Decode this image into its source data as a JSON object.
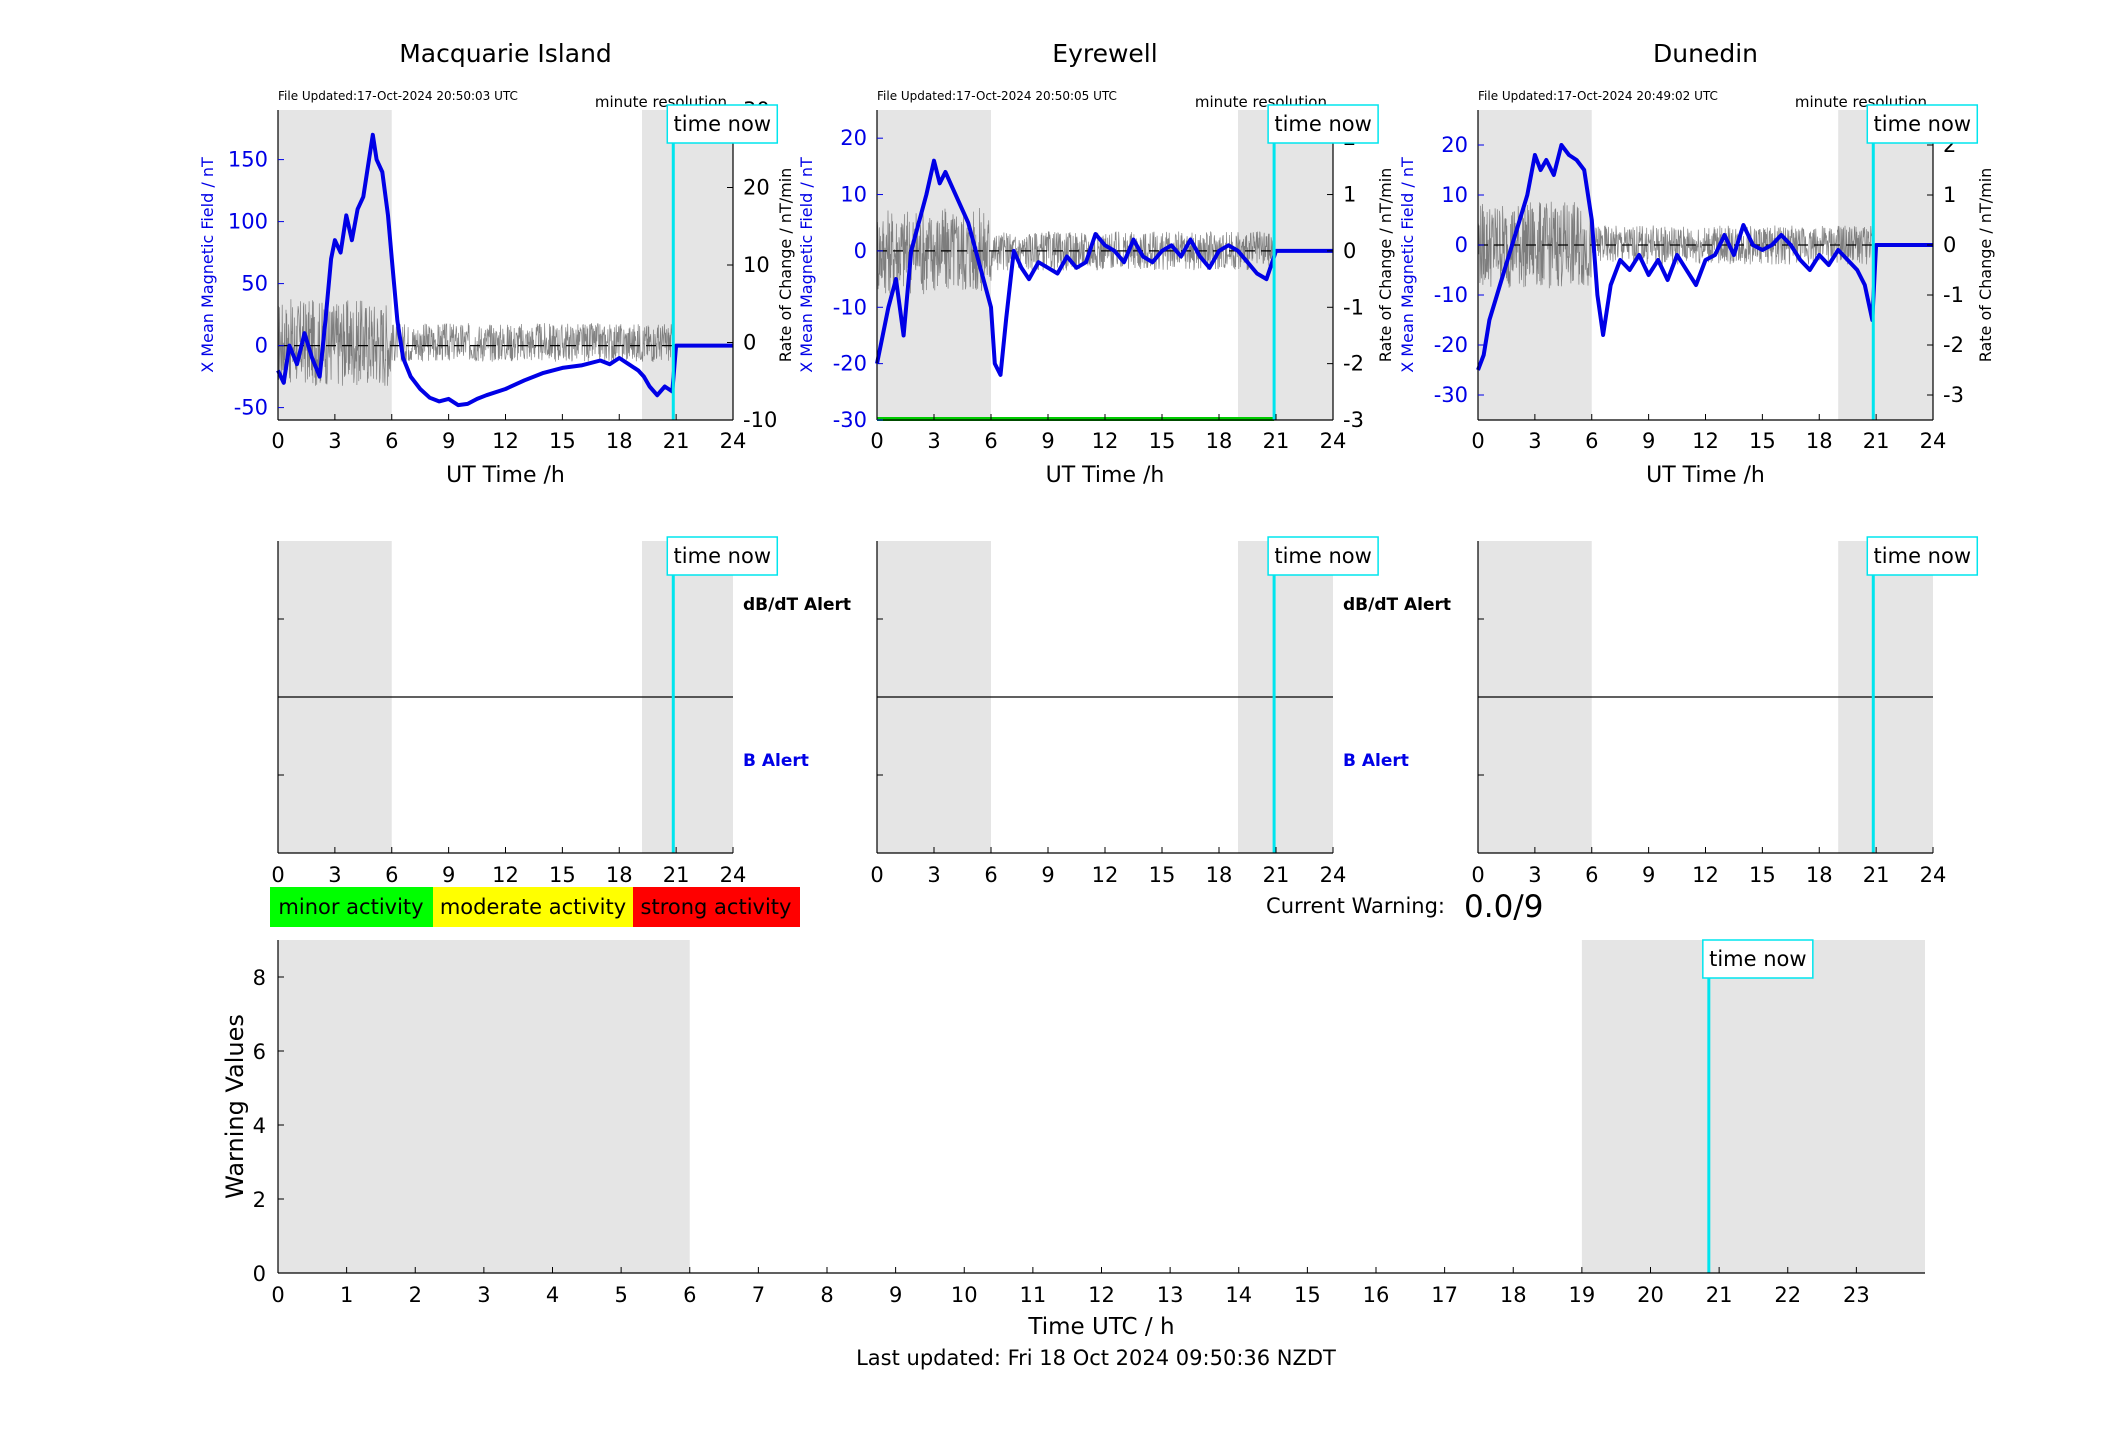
{
  "figure": {
    "footer": "Last updated: Fri 18 Oct 2024 09:50:36 NZDT",
    "current_warning_label": "Current Warning:",
    "current_warning_value": "0.0/9",
    "time_now_label": "time now",
    "minute_resolution_label": "minute resolution",
    "dbdt_alert_label": "dB/dT Alert",
    "b_alert_label": "B Alert",
    "colors": {
      "field_line": "#0000e6",
      "rate_line": "#5a5a5a",
      "time_now": "#00e5ee",
      "shade": "#e5e5e5",
      "green_baseline": "#00cc00",
      "minor": "#00ff00",
      "moderate": "#ffff00",
      "strong": "#ff0000"
    },
    "activity_legend": [
      {
        "label": "minor activity",
        "color": "#00ff00"
      },
      {
        "label": "moderate activity",
        "color": "#ffff00"
      },
      {
        "label": "strong activity",
        "color": "#ff0000"
      }
    ]
  },
  "chart_data": [
    {
      "type": "line",
      "title": "Macquarie Island",
      "file_updated": "File Updated:17-Oct-2024 20:50:03 UTC",
      "xlabel": "UT Time /h",
      "ylabel_left": "X Mean Magnetic Field / nT",
      "ylabel_right": "Rate of Change / nT/min",
      "xlim": [
        0,
        24
      ],
      "xticks": [
        0,
        3,
        6,
        9,
        12,
        15,
        18,
        21,
        24
      ],
      "ylim_left": [
        -60,
        190
      ],
      "yticks_left": [
        -50,
        0,
        50,
        100,
        150
      ],
      "ylim_right": [
        -10,
        30
      ],
      "yticks_right": [
        -10,
        0,
        10,
        20,
        30
      ],
      "shaded_x": [
        [
          0,
          6
        ],
        [
          19.2,
          24
        ]
      ],
      "time_now": 20.85,
      "green_baseline": false,
      "series": [
        {
          "name": "X Mean Magnetic Field",
          "x": [
            0,
            0.3,
            0.6,
            1.0,
            1.4,
            1.8,
            2.2,
            2.5,
            2.8,
            3.0,
            3.3,
            3.6,
            3.9,
            4.2,
            4.5,
            4.8,
            5.0,
            5.2,
            5.5,
            5.8,
            6.0,
            6.3,
            6.6,
            7.0,
            7.5,
            8.0,
            8.5,
            9.0,
            9.5,
            10.0,
            10.5,
            11.0,
            12.0,
            13.0,
            14.0,
            15.0,
            16.0,
            17.0,
            17.5,
            18.0,
            18.5,
            19.0,
            19.3,
            19.6,
            20.0,
            20.4,
            20.8,
            21.0,
            24.0
          ],
          "values": [
            -20,
            -30,
            0,
            -15,
            10,
            -10,
            -25,
            20,
            70,
            85,
            75,
            105,
            85,
            110,
            120,
            150,
            170,
            150,
            140,
            105,
            70,
            20,
            -10,
            -25,
            -35,
            -42,
            -45,
            -43,
            -48,
            -47,
            -43,
            -40,
            -35,
            -28,
            -22,
            -18,
            -16,
            -12,
            -15,
            -10,
            -15,
            -20,
            -25,
            -33,
            -40,
            -33,
            -37,
            0,
            0
          ]
        },
        {
          "name": "Rate of Change",
          "axis": "right",
          "x": [
            0,
            6,
            9,
            12,
            15,
            18,
            21
          ],
          "values": [
            0,
            0,
            0,
            0,
            0,
            0,
            0
          ]
        }
      ]
    },
    {
      "type": "line",
      "title": "Eyrewell",
      "file_updated": "File Updated:17-Oct-2024 20:50:05 UTC",
      "xlabel": "UT Time /h",
      "ylabel_left": "X Mean Magnetic Field / nT",
      "ylabel_right": "Rate of Change / nT/min",
      "xlim": [
        0,
        24
      ],
      "xticks": [
        0,
        3,
        6,
        9,
        12,
        15,
        18,
        21,
        24
      ],
      "ylim_left": [
        -30,
        25
      ],
      "yticks_left": [
        -30,
        -20,
        -10,
        0,
        10,
        20
      ],
      "ylim_right": [
        -3,
        2.5
      ],
      "yticks_right": [
        -3,
        -2,
        -1,
        0,
        1,
        2
      ],
      "shaded_x": [
        [
          0,
          6
        ],
        [
          19,
          24
        ]
      ],
      "time_now": 20.9,
      "green_baseline": true,
      "series": [
        {
          "name": "X Mean Magnetic Field",
          "x": [
            0,
            0.3,
            0.6,
            1.0,
            1.4,
            1.8,
            2.2,
            2.6,
            3.0,
            3.3,
            3.6,
            4.0,
            4.4,
            4.8,
            5.2,
            5.6,
            6.0,
            6.2,
            6.5,
            6.8,
            7.2,
            7.6,
            8.0,
            8.5,
            9.0,
            9.5,
            10.0,
            10.5,
            11.0,
            11.5,
            12.0,
            12.5,
            13.0,
            13.5,
            14.0,
            14.5,
            15.0,
            15.5,
            16.0,
            16.5,
            17.0,
            17.5,
            18.0,
            18.5,
            19.0,
            19.5,
            20.0,
            20.5,
            21.0,
            24.0
          ],
          "values": [
            -20,
            -15,
            -10,
            -5,
            -15,
            0,
            5,
            10,
            16,
            12,
            14,
            11,
            8,
            5,
            0,
            -5,
            -10,
            -20,
            -22,
            -12,
            0,
            -3,
            -5,
            -2,
            -3,
            -4,
            -1,
            -3,
            -2,
            3,
            1,
            0,
            -2,
            2,
            -1,
            -2,
            0,
            1,
            -1,
            2,
            -1,
            -3,
            0,
            1,
            0,
            -2,
            -4,
            -5,
            0,
            0
          ]
        },
        {
          "name": "Rate of Change",
          "axis": "right",
          "x": [
            0,
            6,
            9,
            12,
            15,
            18,
            21
          ],
          "values": [
            0,
            0,
            0,
            0,
            0,
            0,
            0
          ]
        }
      ]
    },
    {
      "type": "line",
      "title": "Dunedin",
      "file_updated": "File Updated:17-Oct-2024 20:49:02 UTC",
      "xlabel": "UT Time /h",
      "ylabel_left": "X Mean Magnetic Field / nT",
      "ylabel_right": "Rate of Change / nT/min",
      "xlim": [
        0,
        24
      ],
      "xticks": [
        0,
        3,
        6,
        9,
        12,
        15,
        18,
        21,
        24
      ],
      "ylim_left": [
        -35,
        27
      ],
      "yticks_left": [
        -30,
        -20,
        -10,
        0,
        10,
        20
      ],
      "ylim_right": [
        -3.5,
        2.7
      ],
      "yticks_right": [
        -3,
        -2,
        -1,
        0,
        1,
        2
      ],
      "shaded_x": [
        [
          0,
          6
        ],
        [
          19,
          24
        ]
      ],
      "time_now": 20.85,
      "green_baseline": false,
      "series": [
        {
          "name": "X Mean Magnetic Field",
          "x": [
            0,
            0.3,
            0.6,
            1.0,
            1.4,
            1.8,
            2.2,
            2.6,
            3.0,
            3.3,
            3.6,
            4.0,
            4.4,
            4.8,
            5.2,
            5.6,
            6.0,
            6.3,
            6.6,
            7.0,
            7.5,
            8.0,
            8.5,
            9.0,
            9.5,
            10.0,
            10.5,
            11.0,
            11.5,
            12.0,
            12.5,
            13.0,
            13.5,
            14.0,
            14.5,
            15.0,
            15.5,
            16.0,
            16.5,
            17.0,
            17.5,
            18.0,
            18.5,
            19.0,
            19.5,
            20.0,
            20.4,
            20.8,
            21.0,
            24.0
          ],
          "values": [
            -25,
            -22,
            -15,
            -10,
            -5,
            0,
            5,
            10,
            18,
            15,
            17,
            14,
            20,
            18,
            17,
            15,
            5,
            -10,
            -18,
            -8,
            -3,
            -5,
            -2,
            -6,
            -3,
            -7,
            -2,
            -5,
            -8,
            -3,
            -2,
            2,
            -2,
            4,
            0,
            -1,
            0,
            2,
            0,
            -3,
            -5,
            -2,
            -4,
            -1,
            -3,
            -5,
            -8,
            -15,
            0,
            0
          ]
        },
        {
          "name": "Rate of Change",
          "axis": "right",
          "x": [
            0,
            6,
            9,
            12,
            15,
            18,
            21
          ],
          "values": [
            0,
            0,
            0,
            0,
            0,
            0,
            0
          ]
        }
      ]
    },
    {
      "type": "line",
      "title": "",
      "xlim": [
        0,
        24
      ],
      "xticks": [
        0,
        3,
        6,
        9,
        12,
        15,
        18,
        21,
        24
      ],
      "shaded_x": [
        [
          0,
          6
        ],
        [
          19.2,
          24
        ]
      ],
      "time_now": 20.85,
      "annotations": [
        "dB/dT Alert",
        "B Alert"
      ]
    },
    {
      "type": "line",
      "title": "",
      "xlim": [
        0,
        24
      ],
      "xticks": [
        0,
        3,
        6,
        9,
        12,
        15,
        18,
        21,
        24
      ],
      "shaded_x": [
        [
          0,
          6
        ],
        [
          19,
          24
        ]
      ],
      "time_now": 20.9,
      "annotations": [
        "dB/dT Alert",
        "B Alert"
      ]
    },
    {
      "type": "line",
      "title": "",
      "xlim": [
        0,
        24
      ],
      "xticks": [
        0,
        3,
        6,
        9,
        12,
        15,
        18,
        21,
        24
      ],
      "shaded_x": [
        [
          0,
          6
        ],
        [
          19,
          24
        ]
      ],
      "time_now": 20.85,
      "annotations": []
    },
    {
      "type": "bar",
      "title": "",
      "xlabel": "Time UTC / h",
      "ylabel": "Warning Values",
      "xlim": [
        0,
        24
      ],
      "xticks": [
        0,
        1,
        2,
        3,
        4,
        5,
        6,
        7,
        8,
        9,
        10,
        11,
        12,
        13,
        14,
        15,
        16,
        17,
        18,
        19,
        20,
        21,
        22,
        23
      ],
      "ylim": [
        0,
        9
      ],
      "yticks": [
        0,
        2,
        4,
        6,
        8
      ],
      "shaded_x": [
        [
          0,
          6
        ],
        [
          19,
          24
        ]
      ],
      "time_now": 20.85,
      "values": []
    }
  ]
}
